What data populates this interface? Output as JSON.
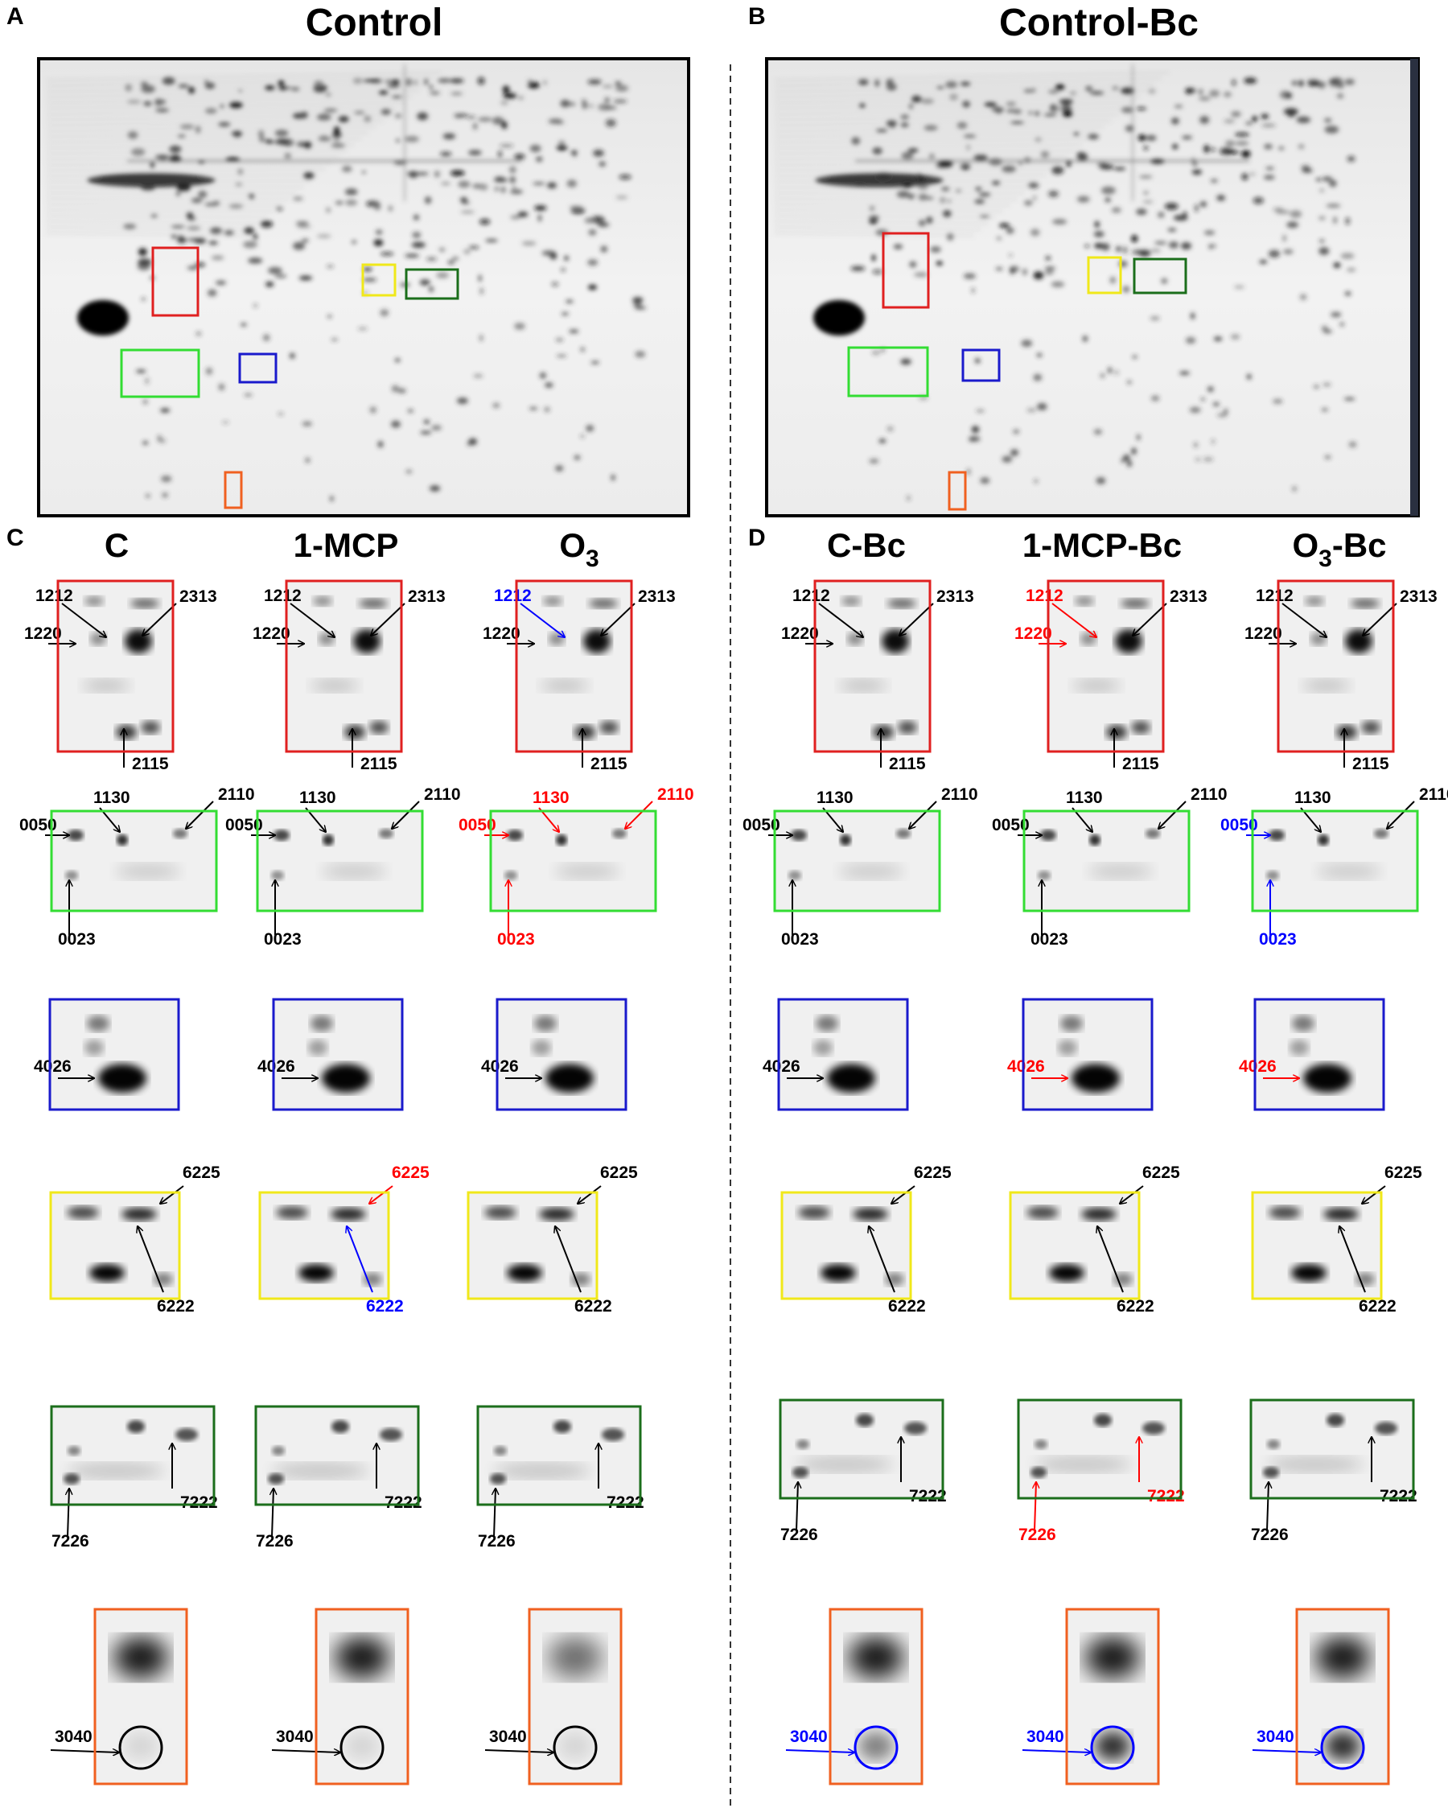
{
  "panels": {
    "A": {
      "letter": "A",
      "title": "Control"
    },
    "B": {
      "letter": "B",
      "title": "Control-Bc"
    },
    "C": {
      "letter": "C",
      "columns": [
        "C",
        "1-MCP",
        "O3"
      ]
    },
    "D": {
      "letter": "D",
      "columns": [
        "C-Bc",
        "1-MCP-Bc",
        "O3-Bc"
      ]
    }
  },
  "box_colors": {
    "red": "#e02020",
    "light_green": "#33dd33",
    "blue": "#1a1acc",
    "yellow": "#f0e81a",
    "dark_green": "#1b6e1b",
    "orange": "#f06020"
  },
  "label_colors": {
    "normal": "#000000",
    "up": "#ff0000",
    "down": "#0000ff"
  },
  "rows": [
    {
      "box": "red",
      "spots": [
        "1212",
        "1220",
        "2313",
        "2115"
      ],
      "colors": [
        [
          "normal",
          "normal",
          "normal",
          "normal"
        ],
        [
          "normal",
          "normal",
          "normal",
          "normal"
        ],
        [
          "down",
          "normal",
          "normal",
          "normal"
        ],
        [
          "normal",
          "normal",
          "normal",
          "normal"
        ],
        [
          "up",
          "up",
          "normal",
          "normal"
        ],
        [
          "normal",
          "normal",
          "normal",
          "normal"
        ]
      ]
    },
    {
      "box": "light_green",
      "spots": [
        "0050",
        "1130",
        "2110",
        "0023"
      ],
      "colors": [
        [
          "normal",
          "normal",
          "normal",
          "normal"
        ],
        [
          "normal",
          "normal",
          "normal",
          "normal"
        ],
        [
          "up",
          "up",
          "up",
          "up"
        ],
        [
          "normal",
          "normal",
          "normal",
          "normal"
        ],
        [
          "normal",
          "normal",
          "normal",
          "normal"
        ],
        [
          "down",
          "normal",
          "normal",
          "down"
        ]
      ]
    },
    {
      "box": "blue",
      "spots": [
        "4026"
      ],
      "colors": [
        [
          "normal"
        ],
        [
          "normal"
        ],
        [
          "normal"
        ],
        [
          "normal"
        ],
        [
          "up"
        ],
        [
          "up"
        ]
      ]
    },
    {
      "box": "yellow",
      "spots": [
        "6225",
        "6222"
      ],
      "colors": [
        [
          "normal",
          "normal"
        ],
        [
          "up",
          "down"
        ],
        [
          "normal",
          "normal"
        ],
        [
          "normal",
          "normal"
        ],
        [
          "normal",
          "normal"
        ],
        [
          "normal",
          "normal"
        ]
      ]
    },
    {
      "box": "dark_green",
      "spots": [
        "7226",
        "7222"
      ],
      "colors": [
        [
          "normal",
          "normal"
        ],
        [
          "normal",
          "normal"
        ],
        [
          "normal",
          "normal"
        ],
        [
          "normal",
          "normal"
        ],
        [
          "up",
          "up"
        ],
        [
          "normal",
          "normal"
        ]
      ]
    },
    {
      "box": "orange",
      "spots": [
        "3040"
      ],
      "colors": [
        [
          "normal"
        ],
        [
          "normal"
        ],
        [
          "normal"
        ],
        [
          "down"
        ],
        [
          "down"
        ],
        [
          "down"
        ]
      ]
    }
  ]
}
